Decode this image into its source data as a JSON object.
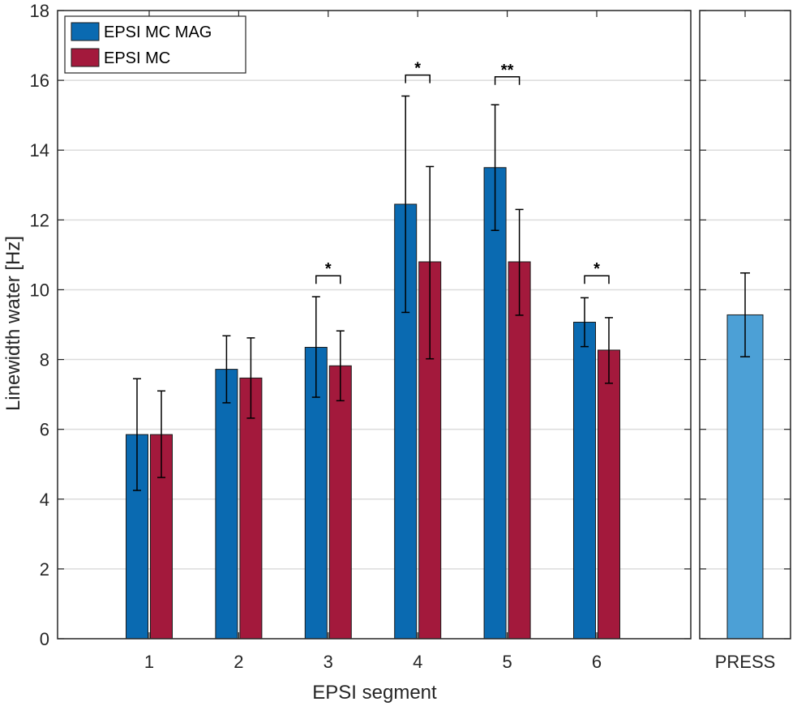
{
  "chart_data": [
    {
      "type": "bar",
      "categories": [
        "1",
        "2",
        "3",
        "4",
        "5",
        "6"
      ],
      "xlabel": "EPSI segment",
      "ylabel": "Linewidth water [Hz]",
      "ylim": [
        0,
        18
      ],
      "yticks": [
        "0",
        "2",
        "4",
        "6",
        "8",
        "10",
        "12",
        "14",
        "16",
        "18"
      ],
      "grid": "horizontal",
      "legend_position": "top-left",
      "series": [
        {
          "name": "EPSI MC MAG",
          "color": "#0a6ab1",
          "values": [
            5.85,
            7.72,
            8.35,
            12.45,
            13.5,
            9.07
          ],
          "error_low": [
            4.25,
            6.76,
            6.92,
            9.35,
            11.7,
            8.37
          ],
          "error_high": [
            7.45,
            8.68,
            9.8,
            15.55,
            15.3,
            9.77
          ]
        },
        {
          "name": "EPSI MC",
          "color": "#a3193c",
          "values": [
            5.85,
            7.47,
            7.82,
            10.8,
            10.8,
            8.27
          ],
          "error_low": [
            4.62,
            6.32,
            6.82,
            8.02,
            9.27,
            7.32
          ],
          "error_high": [
            7.1,
            8.62,
            8.82,
            13.53,
            12.3,
            9.2
          ]
        }
      ],
      "significance": [
        {
          "category": "3",
          "label": "*",
          "y": 10.4
        },
        {
          "category": "4",
          "label": "*",
          "y": 16.15
        },
        {
          "category": "5",
          "label": "**",
          "y": 16.1
        },
        {
          "category": "6",
          "label": "*",
          "y": 10.4
        }
      ]
    },
    {
      "type": "bar",
      "categories": [
        "PRESS"
      ],
      "ylim": [
        0,
        18
      ],
      "grid": "horizontal",
      "series": [
        {
          "color": "#4ca0d6",
          "values": [
            9.28
          ],
          "error_low": [
            8.08
          ],
          "error_high": [
            10.48
          ]
        }
      ]
    }
  ]
}
